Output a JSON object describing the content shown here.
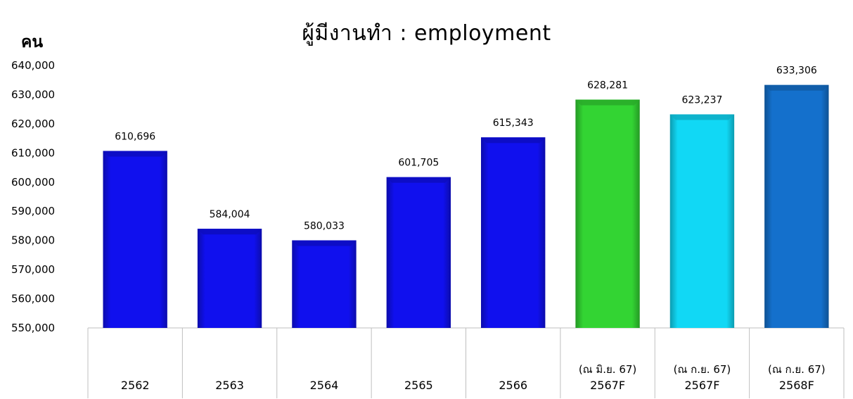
{
  "chart_data": {
    "type": "bar",
    "title": "ผู้มีงานทำ : employment",
    "ylabel": "คน",
    "xlabel": "",
    "ylim": [
      550000,
      640000
    ],
    "yticks": [
      550000,
      560000,
      570000,
      580000,
      590000,
      600000,
      610000,
      620000,
      630000,
      640000
    ],
    "grid": false,
    "legend": "none",
    "categories": [
      "2562",
      "2563",
      "2564",
      "2565",
      "2566",
      "2567F",
      "2567F",
      "2568F"
    ],
    "sublabels": [
      "",
      "",
      "",
      "",
      "",
      "(ณ มิ.ย. 67)",
      "(ณ ก.ย. 67)",
      "(ณ ก.ย. 67)"
    ],
    "values": [
      610696,
      584004,
      580033,
      601705,
      615343,
      628281,
      623237,
      633306
    ],
    "bar_colors": [
      "#1010ee",
      "#1010ee",
      "#1010ee",
      "#1010ee",
      "#1010ee",
      "#33d433",
      "#11d8f5",
      "#1470cc"
    ]
  }
}
